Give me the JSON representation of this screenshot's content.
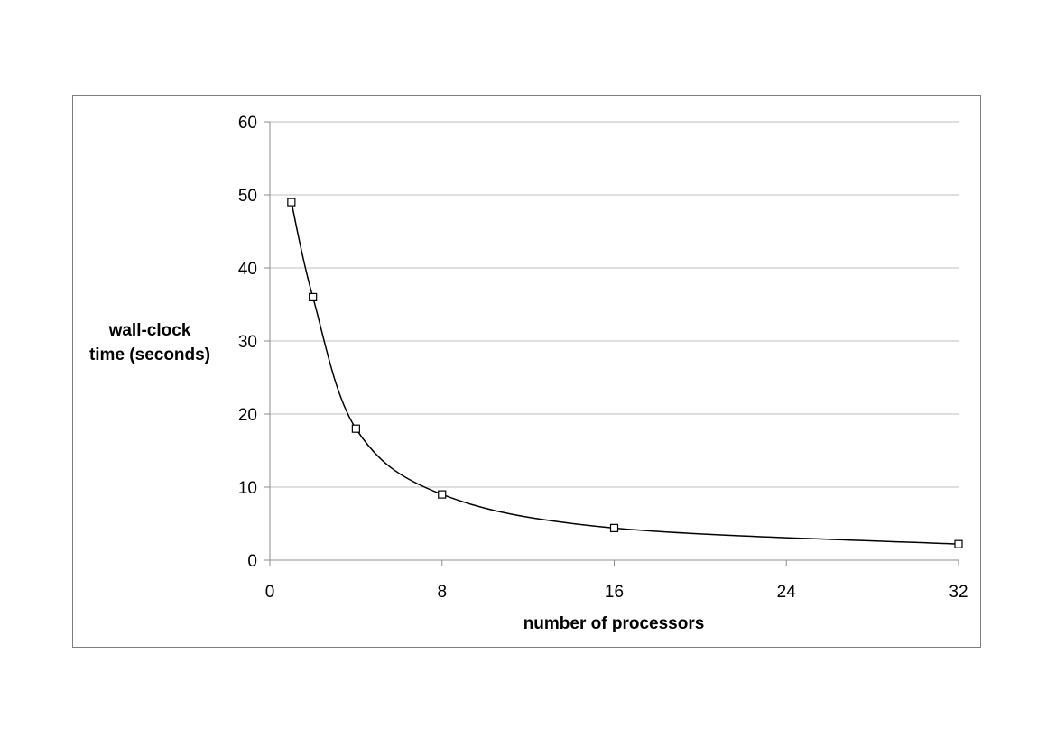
{
  "chart_data": {
    "type": "line",
    "title": "",
    "xlabel": "number of processors",
    "ylabel": [
      "wall-clock",
      "time (seconds)"
    ],
    "xlim": [
      0,
      32
    ],
    "ylim": [
      0,
      60
    ],
    "xticks": [
      0,
      8,
      16,
      24,
      32
    ],
    "yticks": [
      0,
      10,
      20,
      30,
      40,
      50,
      60
    ],
    "grid": "horizontal",
    "legend": "none",
    "smooth": true,
    "marker": "square",
    "series": [
      {
        "x": [
          1,
          2,
          4,
          8,
          16,
          32
        ],
        "y": [
          49,
          36,
          18,
          9,
          4.4,
          2.2
        ],
        "color": "#000000"
      }
    ],
    "colors": {
      "grid": "#bfbfbf",
      "axis": "#8c8c8c",
      "frame": "#7f7f7f"
    }
  }
}
